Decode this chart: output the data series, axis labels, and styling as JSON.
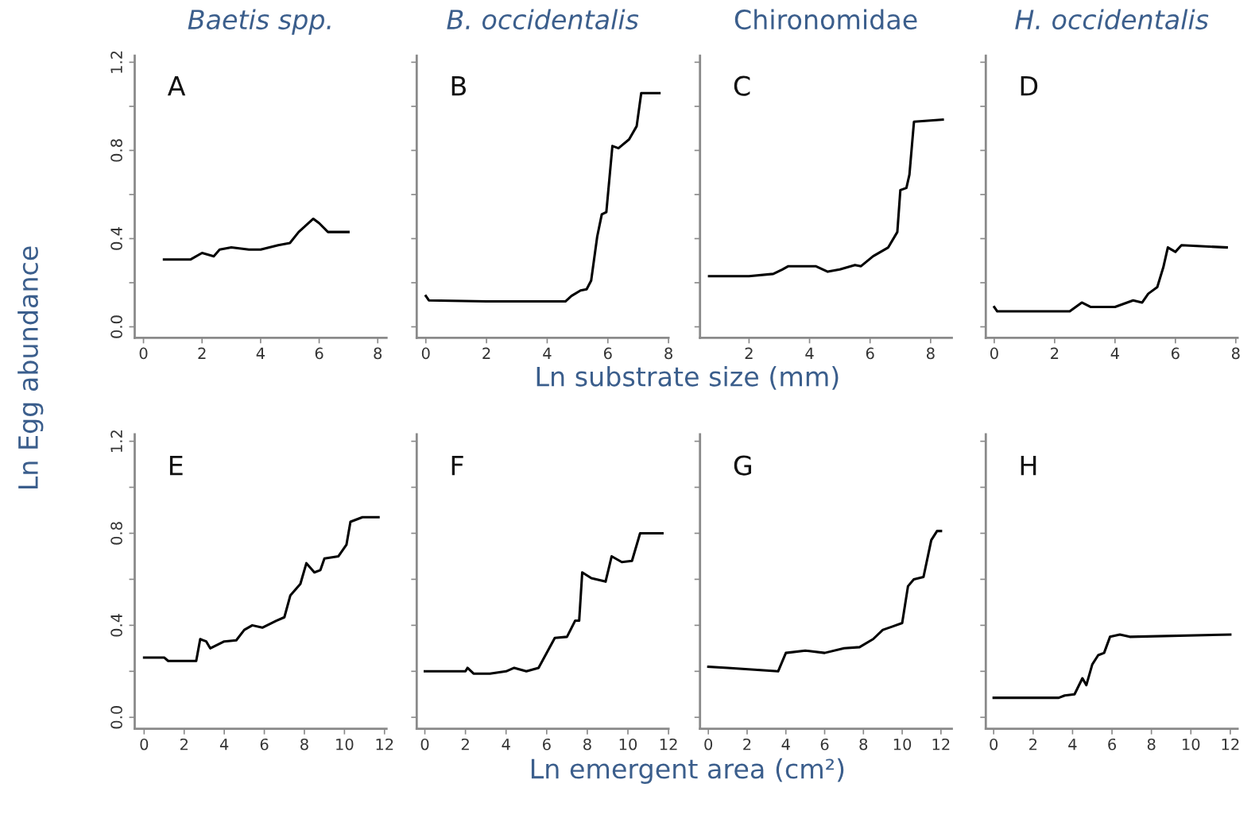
{
  "chart_data": [
    {
      "type": "line",
      "title": "Baetis spp.",
      "ylabel": "Ln Egg abundance",
      "annotations": [
        "A"
      ],
      "xlim": [
        -0.3,
        8.3
      ],
      "xticks": [
        0,
        2,
        4,
        6,
        8
      ],
      "ylim": [
        -0.05,
        1.23
      ],
      "yticks": [
        {
          "value": 0,
          "label": "0.0"
        },
        {
          "value": 0.2,
          "label": null
        },
        0.4,
        {
          "value": 0.6,
          "label": null
        },
        0.8,
        {
          "value": 1.0,
          "label": null
        },
        1.2
      ],
      "grid": false,
      "legend": false,
      "series": [
        {
          "color": "#000000",
          "x": [
            0.7,
            1.6,
            2.0,
            2.4,
            2.6,
            3.0,
            3.6,
            4.0,
            4.6,
            5.0,
            5.3,
            5.8,
            6.0,
            6.3,
            7.0
          ],
          "values": [
            0.305,
            0.305,
            0.335,
            0.32,
            0.35,
            0.36,
            0.35,
            0.35,
            0.37,
            0.38,
            0.43,
            0.49,
            0.47,
            0.43,
            0.43
          ]
        }
      ]
    },
    {
      "type": "line",
      "title": "B. occidentalis",
      "annotations": [
        "B"
      ],
      "xlim": [
        -0.3,
        8.0
      ],
      "xticks": [
        0,
        2,
        4,
        6,
        8
      ],
      "ylim": [
        -0.05,
        1.23
      ],
      "yticks": [
        {
          "value": 0,
          "label": null
        },
        {
          "value": 0.2,
          "label": null
        },
        {
          "value": 0.4,
          "label": null
        },
        {
          "value": 0.6,
          "label": null
        },
        {
          "value": 0.8,
          "label": null
        },
        {
          "value": 1.0,
          "label": null
        },
        {
          "value": 1.2,
          "label": null
        }
      ],
      "tick_labels": "x",
      "grid": false,
      "legend": false,
      "series": [
        {
          "color": "#000000",
          "x": [
            0,
            0.1,
            2.0,
            4.6,
            4.8,
            5.1,
            5.3,
            5.45,
            5.65,
            5.8,
            5.95,
            6.15,
            6.35,
            6.7,
            6.95,
            7.1,
            7.7
          ],
          "values": [
            0.14,
            0.12,
            0.115,
            0.115,
            0.14,
            0.165,
            0.17,
            0.21,
            0.41,
            0.51,
            0.52,
            0.82,
            0.81,
            0.85,
            0.91,
            1.06,
            1.06
          ]
        }
      ]
    },
    {
      "type": "line",
      "title": "Chironomidae",
      "xlabel": "Ln substrate size (mm)",
      "annotations": [
        "C"
      ],
      "xlim": [
        0.38,
        8.7
      ],
      "xticks": [
        2,
        4,
        6,
        8
      ],
      "ylim": [
        -0.05,
        1.23
      ],
      "yticks": [
        {
          "value": 0,
          "label": null
        },
        {
          "value": 0.2,
          "label": null
        },
        {
          "value": 0.4,
          "label": null
        },
        {
          "value": 0.6,
          "label": null
        },
        {
          "value": 0.8,
          "label": null
        },
        {
          "value": 1.0,
          "label": null
        },
        {
          "value": 1.2,
          "label": null
        }
      ],
      "tick_labels": "x",
      "grid": false,
      "legend": false,
      "series": [
        {
          "color": "#000000",
          "x": [
            0.68,
            2.0,
            2.8,
            3.1,
            3.3,
            4.2,
            4.6,
            5.0,
            5.5,
            5.7,
            6.1,
            6.6,
            6.9,
            7.0,
            7.2,
            7.3,
            7.45,
            8.4
          ],
          "values": [
            0.23,
            0.23,
            0.24,
            0.26,
            0.275,
            0.275,
            0.25,
            0.26,
            0.28,
            0.275,
            0.32,
            0.36,
            0.43,
            0.62,
            0.63,
            0.69,
            0.93,
            0.94
          ]
        }
      ]
    },
    {
      "type": "line",
      "title": "H. occidentalis",
      "annotations": [
        "D"
      ],
      "xlim": [
        -0.28,
        8.06
      ],
      "xticks": [
        0,
        2,
        4,
        6,
        8
      ],
      "ylim": [
        -0.05,
        1.23
      ],
      "yticks": [
        {
          "value": 0,
          "label": null
        },
        {
          "value": 0.2,
          "label": null
        },
        {
          "value": 0.4,
          "label": null
        },
        {
          "value": 0.6,
          "label": null
        },
        {
          "value": 0.8,
          "label": null
        },
        {
          "value": 1.0,
          "label": null
        },
        {
          "value": 1.2,
          "label": null
        }
      ],
      "tick_labels": "x",
      "grid": false,
      "legend": false,
      "series": [
        {
          "color": "#000000",
          "x": [
            0,
            0.1,
            2.0,
            2.5,
            2.9,
            3.2,
            4.0,
            4.2,
            4.6,
            4.9,
            5.1,
            5.4,
            5.6,
            5.75,
            6.0,
            6.2,
            7.7
          ],
          "values": [
            0.09,
            0.07,
            0.07,
            0.07,
            0.11,
            0.09,
            0.09,
            0.1,
            0.12,
            0.11,
            0.15,
            0.18,
            0.27,
            0.36,
            0.34,
            0.37,
            0.36
          ]
        }
      ]
    },
    {
      "type": "line",
      "annotations": [
        "E"
      ],
      "xlim": [
        -0.47,
        12.1
      ],
      "xticks": [
        0,
        2,
        4,
        6,
        8,
        10,
        12
      ],
      "ylim": [
        -0.05,
        1.23
      ],
      "yticks": [
        {
          "value": 0,
          "label": "0.0"
        },
        {
          "value": 0.2,
          "label": null
        },
        0.4,
        {
          "value": 0.6,
          "label": null
        },
        0.8,
        {
          "value": 1.0,
          "label": null
        },
        1.2
      ],
      "grid": false,
      "legend": false,
      "series": [
        {
          "color": "#000000",
          "x": [
            0,
            1.0,
            1.2,
            2.6,
            2.8,
            3.1,
            3.3,
            4.0,
            4.6,
            5.0,
            5.4,
            5.9,
            6.6,
            7.0,
            7.3,
            7.8,
            8.1,
            8.5,
            8.8,
            9.0,
            9.7,
            10.1,
            10.3,
            10.9,
            11.7
          ],
          "values": [
            0.26,
            0.26,
            0.245,
            0.245,
            0.34,
            0.33,
            0.3,
            0.33,
            0.335,
            0.38,
            0.4,
            0.39,
            0.42,
            0.435,
            0.53,
            0.58,
            0.67,
            0.63,
            0.64,
            0.69,
            0.7,
            0.75,
            0.85,
            0.87,
            0.87
          ]
        }
      ]
    },
    {
      "type": "line",
      "annotations": [
        "F"
      ],
      "xlim": [
        -0.4,
        12.0
      ],
      "xticks": [
        0,
        2,
        4,
        6,
        8,
        10,
        12
      ],
      "ylim": [
        -0.05,
        1.23
      ],
      "yticks": [
        {
          "value": 0,
          "label": null
        },
        {
          "value": 0.2,
          "label": null
        },
        {
          "value": 0.4,
          "label": null
        },
        {
          "value": 0.6,
          "label": null
        },
        {
          "value": 0.8,
          "label": null
        },
        {
          "value": 1.0,
          "label": null
        },
        {
          "value": 1.2,
          "label": null
        }
      ],
      "tick_labels": "x",
      "grid": false,
      "legend": false,
      "series": [
        {
          "color": "#000000",
          "x": [
            0,
            2.0,
            2.1,
            2.4,
            3.2,
            4.0,
            4.4,
            5.0,
            5.6,
            6.4,
            7.0,
            7.4,
            7.6,
            7.75,
            8.2,
            8.9,
            9.2,
            9.7,
            10.2,
            10.6,
            11.7
          ],
          "values": [
            0.2,
            0.2,
            0.215,
            0.19,
            0.19,
            0.2,
            0.215,
            0.2,
            0.215,
            0.345,
            0.35,
            0.42,
            0.42,
            0.63,
            0.605,
            0.59,
            0.7,
            0.675,
            0.68,
            0.8,
            0.8
          ]
        }
      ]
    },
    {
      "type": "line",
      "xlabel": "Ln emergent area (cm²)",
      "annotations": [
        "G"
      ],
      "xlim": [
        -0.43,
        12.56
      ],
      "xticks": [
        0,
        2,
        4,
        6,
        8,
        10,
        12
      ],
      "ylim": [
        -0.05,
        1.23
      ],
      "yticks": [
        {
          "value": 0,
          "label": null
        },
        {
          "value": 0.2,
          "label": null
        },
        {
          "value": 0.4,
          "label": null
        },
        {
          "value": 0.6,
          "label": null
        },
        {
          "value": 0.8,
          "label": null
        },
        {
          "value": 1.0,
          "label": null
        },
        {
          "value": 1.2,
          "label": null
        }
      ],
      "tick_labels": "x",
      "grid": false,
      "legend": false,
      "series": [
        {
          "color": "#000000",
          "x": [
            0,
            1.0,
            3.6,
            4.0,
            5.0,
            6.0,
            7.0,
            7.8,
            8.5,
            9.0,
            9.5,
            10.0,
            10.3,
            10.6,
            11.1,
            11.5,
            11.8,
            12.0
          ],
          "values": [
            0.22,
            0.215,
            0.2,
            0.28,
            0.29,
            0.28,
            0.3,
            0.305,
            0.34,
            0.38,
            0.395,
            0.41,
            0.57,
            0.6,
            0.61,
            0.77,
            0.81,
            0.81
          ]
        }
      ]
    },
    {
      "type": "line",
      "annotations": [
        "H"
      ],
      "xlim": [
        -0.4,
        12.37
      ],
      "xticks": [
        0,
        2,
        4,
        6,
        8,
        10,
        12
      ],
      "ylim": [
        -0.05,
        1.23
      ],
      "yticks": [
        {
          "value": 0,
          "label": null
        },
        {
          "value": 0.2,
          "label": null
        },
        {
          "value": 0.4,
          "label": null
        },
        {
          "value": 0.6,
          "label": null
        },
        {
          "value": 0.8,
          "label": null
        },
        {
          "value": 1.0,
          "label": null
        },
        {
          "value": 1.2,
          "label": null
        }
      ],
      "tick_labels": "x",
      "grid": false,
      "legend": false,
      "series": [
        {
          "color": "#000000",
          "x": [
            0,
            3.3,
            3.6,
            4.1,
            4.5,
            4.7,
            5.0,
            5.3,
            5.6,
            5.9,
            6.4,
            6.9,
            12.0
          ],
          "values": [
            0.085,
            0.085,
            0.095,
            0.1,
            0.17,
            0.14,
            0.23,
            0.27,
            0.28,
            0.35,
            0.36,
            0.35,
            0.36
          ]
        }
      ]
    }
  ]
}
